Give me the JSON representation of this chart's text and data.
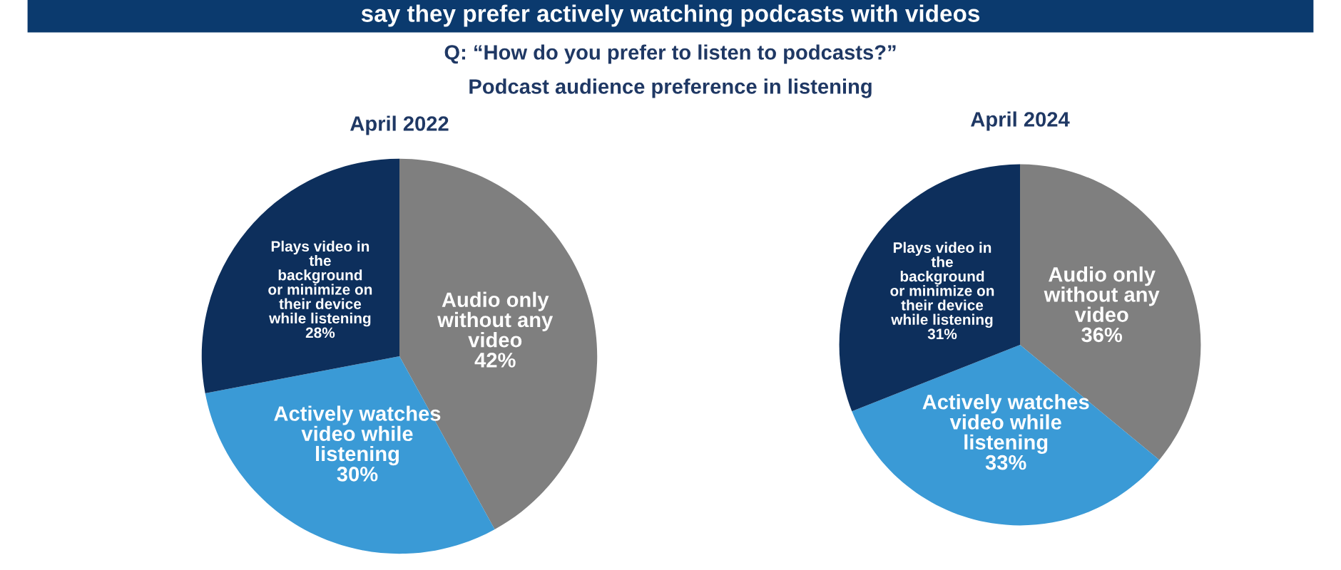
{
  "chart_data": [
    {
      "type": "pie",
      "title": "April 2022",
      "annotations": [
        "say they prefer actively watching podcasts with videos",
        "Q: “How do you prefer to listen to podcasts?”",
        "Podcast audience preference in listening"
      ],
      "categories": [
        "Audio only\nwithout any\nvideo",
        "Actively watches\nvideo while\nlistening",
        "Plays video in\nthe\nbackground\nor minimize on\ntheir device\nwhile listening"
      ],
      "values": [
        42,
        30,
        28
      ],
      "value_labels": [
        "42%",
        "30%",
        "28%"
      ],
      "colors": [
        "#7f7f7f",
        "#3a9ad6",
        "#0d2f5c"
      ]
    },
    {
      "type": "pie",
      "title": "April 2024",
      "categories": [
        "Audio only\nwithout any\nvideo",
        "Actively watches\nvideo while\nlistening",
        "Plays video in\nthe\nbackground\nor minimize on\ntheir device\nwhile listening"
      ],
      "values": [
        36,
        33,
        31
      ],
      "value_labels": [
        "36%",
        "33%",
        "31%"
      ],
      "colors": [
        "#7f7f7f",
        "#3a9ad6",
        "#0d2f5c"
      ]
    }
  ]
}
